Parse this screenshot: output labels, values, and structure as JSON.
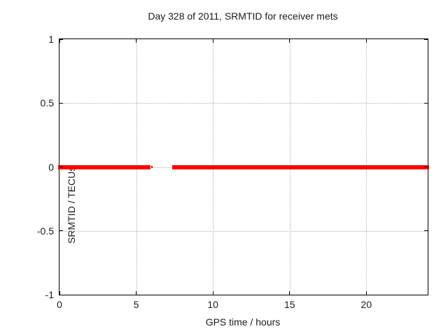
{
  "title": "Day 328 of 2011, SRMTID for receiver mets",
  "chart_data": {
    "type": "line",
    "title": "Day 328 of 2011, SRMTID for receiver mets",
    "xlabel": "GPS time / hours",
    "ylabel": "SRMTID / TECUs",
    "xlim": [
      0,
      24
    ],
    "ylim": [
      -1,
      1
    ],
    "xticks": [
      0,
      5,
      10,
      15,
      20
    ],
    "xtick_labels": [
      "0",
      "5",
      "10",
      "15",
      "20"
    ],
    "yticks": [
      1,
      0.5,
      0,
      -0.5,
      -1
    ],
    "ytick_labels": [
      "1",
      "0.5",
      "0",
      "-0.5",
      "-1"
    ],
    "grid": true,
    "grid_color": "#b0b0b0",
    "background_color": "#ffffff",
    "border_color": "#000000",
    "legend": "none",
    "series": [
      {
        "name": "SRMTID",
        "color": "#ff0000",
        "y_value": 0,
        "x_segments": [
          [
            0,
            5.93
          ],
          [
            5.99,
            6.09
          ],
          [
            7.35,
            24
          ]
        ]
      }
    ]
  }
}
